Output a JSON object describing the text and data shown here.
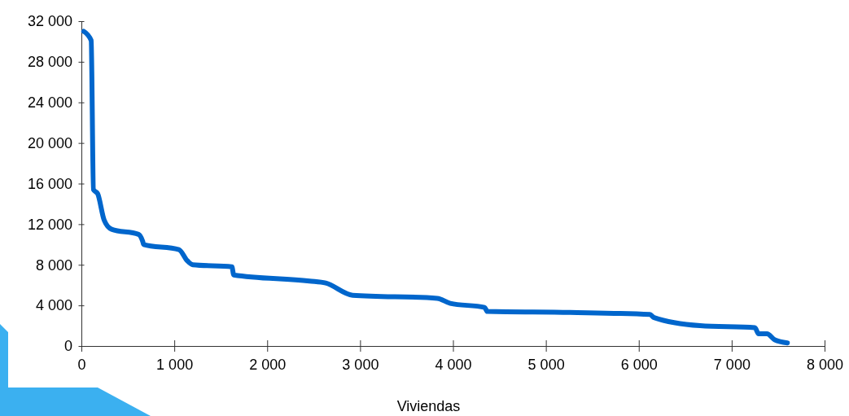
{
  "chart_data": {
    "type": "line",
    "xlabel": "Viviendas",
    "xlim": [
      0,
      8000
    ],
    "ylim": [
      0,
      32000
    ],
    "xticks": [
      0,
      {
        "value": 1000,
        "label": "1 000"
      },
      {
        "value": 2000,
        "label": "2 000"
      },
      {
        "value": 3000,
        "label": "3 000"
      },
      {
        "value": 4000,
        "label": "4 000"
      },
      {
        "value": 5000,
        "label": "5 000"
      },
      {
        "value": 6000,
        "label": "6 000"
      },
      {
        "value": 7000,
        "label": "7 000"
      },
      {
        "value": 8000,
        "label": "8 000"
      }
    ],
    "yticks": [
      0,
      {
        "value": 4000,
        "label": "4 000"
      },
      {
        "value": 8000,
        "label": "8 000"
      },
      {
        "value": 12000,
        "label": "12 000"
      },
      {
        "value": 16000,
        "label": "16 000"
      },
      {
        "value": 20000,
        "label": "20 000"
      },
      {
        "value": 24000,
        "label": "24 000"
      },
      {
        "value": 28000,
        "label": "28 000"
      },
      {
        "value": 32000,
        "label": "32 000"
      }
    ],
    "grid": false,
    "marker": "none",
    "line_style": "solid",
    "series": [
      {
        "color": "#0066cc",
        "x": [
          25,
          105,
          130,
          175,
          245,
          325,
          615,
          660,
          670,
          1050,
          1140,
          1200,
          1620,
          1640,
          2455,
          2630,
          2920,
          3830,
          3970,
          4340,
          4370,
          5260,
          6120,
          6165,
          6660,
          7250,
          7290,
          7380,
          7465,
          7600
        ],
        "values": [
          31000,
          30100,
          15400,
          15000,
          12400,
          11500,
          11000,
          10300,
          10000,
          9500,
          8400,
          8000,
          7800,
          7000,
          6400,
          6200,
          5000,
          4700,
          4200,
          3800,
          3400,
          3300,
          3100,
          2800,
          2000,
          1800,
          1200,
          1200,
          600,
          300
        ]
      }
    ]
  }
}
